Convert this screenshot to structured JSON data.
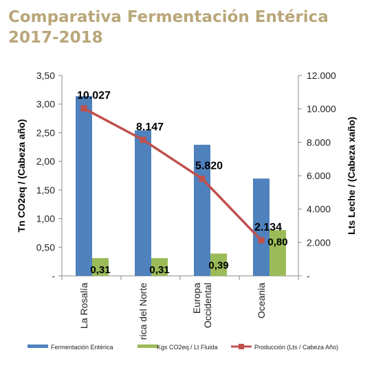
{
  "title": {
    "line1": "Comparativa Fermentación Entérica",
    "line2": "2017-2018"
  },
  "chart_data": {
    "type": "bar",
    "categories": [
      "La Rosalía",
      "América del Norte",
      "Europa Occidental",
      "Oceania"
    ],
    "category_lines": [
      [
        "La Rosalía"
      ],
      [
        "rica del Norte"
      ],
      [
        "Europa",
        "Occidental"
      ],
      [
        "Oceania"
      ]
    ],
    "ylabel_left": "Tn CO2eq / (Cabeza año)",
    "ylabel_right": "Lts Leche / (Cabeza xaño)",
    "y_left": {
      "ylim": [
        0,
        3.5
      ],
      "ticks": [
        0,
        0.5,
        1,
        1.5,
        2,
        2.5,
        3,
        3.5
      ],
      "tick_labels": [
        "-",
        "0,50",
        "1,00",
        "1,50",
        "2,00",
        "2,50",
        "3,00",
        "3,50"
      ]
    },
    "y_right": {
      "ylim": [
        0,
        12000
      ],
      "ticks": [
        0,
        2000,
        4000,
        6000,
        8000,
        10000,
        12000
      ],
      "tick_labels": [
        "-",
        "2.000",
        "4.000",
        "6.000",
        "8.000",
        "10.000",
        "12.000"
      ]
    },
    "series": [
      {
        "name": "Fermentación Entérica",
        "type": "bar",
        "axis": "left",
        "color": "#4f81bd",
        "values": [
          3.14,
          2.54,
          2.29,
          1.7
        ],
        "labels": [
          "",
          "",
          "",
          ""
        ]
      },
      {
        "name": "Kgs CO2eq  / Lt Fluida",
        "type": "bar",
        "axis": "left",
        "color": "#9bbb59",
        "values": [
          0.31,
          0.31,
          0.39,
          0.8
        ],
        "labels": [
          "0,31",
          "0,31",
          "0,39",
          "0,80"
        ]
      },
      {
        "name": "Producción (Lts / Cabeza Año)",
        "type": "line",
        "axis": "right",
        "color": "#c0504d",
        "values": [
          10027,
          8147,
          5820,
          2134
        ],
        "labels": [
          "10.027",
          "8.147",
          "5.820",
          "2.134"
        ]
      }
    ],
    "grid": false,
    "legend": "bottom"
  }
}
